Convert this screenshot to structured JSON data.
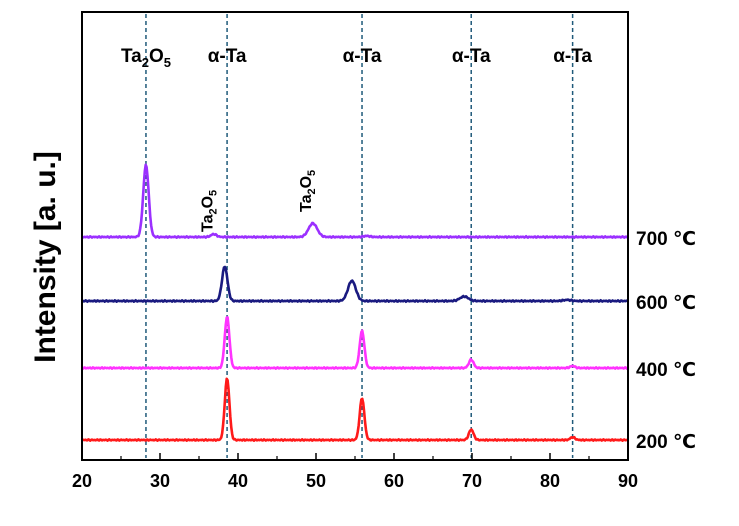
{
  "chart_data": {
    "type": "line",
    "xlim": [
      20,
      90
    ],
    "xticks": [
      20,
      30,
      40,
      50,
      60,
      70,
      80,
      90
    ],
    "ylabel": "Intensity [a. u.]",
    "xlabel": "",
    "grid": false,
    "legend": "none",
    "reference_lines": [
      {
        "x": 28.2,
        "label_main": "Ta",
        "label_sub1": "2",
        "label_mid": "O",
        "label_sub2": "5"
      },
      {
        "x": 38.6,
        "label_main": "α-Ta"
      },
      {
        "x": 55.9,
        "label_main": "α-Ta"
      },
      {
        "x": 69.9,
        "label_main": "α-Ta"
      },
      {
        "x": 82.9,
        "label_main": "α-Ta"
      }
    ],
    "peak_annotations": [
      {
        "x": 37.0,
        "main": "Ta",
        "sub1": "2",
        "mid": "O",
        "sub2": "5"
      },
      {
        "x": 49.6,
        "main": "Ta",
        "sub1": "2",
        "mid": "O",
        "sub2": "5"
      }
    ],
    "series": [
      {
        "name": "700 ℃",
        "color": "#9b30ff",
        "baseline": 0.0,
        "peaks": [
          {
            "x": 28.2,
            "height": 1.0,
            "width": 0.35
          },
          {
            "x": 36.9,
            "height": 0.04,
            "width": 0.35
          },
          {
            "x": 49.6,
            "height": 0.19,
            "width": 0.55
          },
          {
            "x": 56.5,
            "height": 0.015,
            "width": 0.4
          }
        ]
      },
      {
        "name": "600 ℃",
        "color": "#1a1a80",
        "baseline": 0.0,
        "peaks": [
          {
            "x": 38.3,
            "height": 0.46,
            "width": 0.35
          },
          {
            "x": 54.6,
            "height": 0.27,
            "width": 0.5
          },
          {
            "x": 69.0,
            "height": 0.06,
            "width": 0.55
          },
          {
            "x": 82.2,
            "height": 0.015,
            "width": 0.5
          }
        ]
      },
      {
        "name": "400 ℃",
        "color": "#ff33ff",
        "baseline": 0.0,
        "peaks": [
          {
            "x": 38.6,
            "height": 0.73,
            "width": 0.3
          },
          {
            "x": 55.9,
            "height": 0.53,
            "width": 0.3
          },
          {
            "x": 69.9,
            "height": 0.12,
            "width": 0.3
          },
          {
            "x": 82.9,
            "height": 0.03,
            "width": 0.3
          }
        ]
      },
      {
        "name": "200 ℃",
        "color": "#ff1a1a",
        "baseline": 0.0,
        "peaks": [
          {
            "x": 38.6,
            "height": 0.88,
            "width": 0.3
          },
          {
            "x": 55.9,
            "height": 0.6,
            "width": 0.3
          },
          {
            "x": 69.9,
            "height": 0.15,
            "width": 0.3
          },
          {
            "x": 82.9,
            "height": 0.04,
            "width": 0.3
          }
        ]
      }
    ],
    "colors": {
      "reference_line": "#1f5a7a",
      "axis": "#000000"
    }
  }
}
